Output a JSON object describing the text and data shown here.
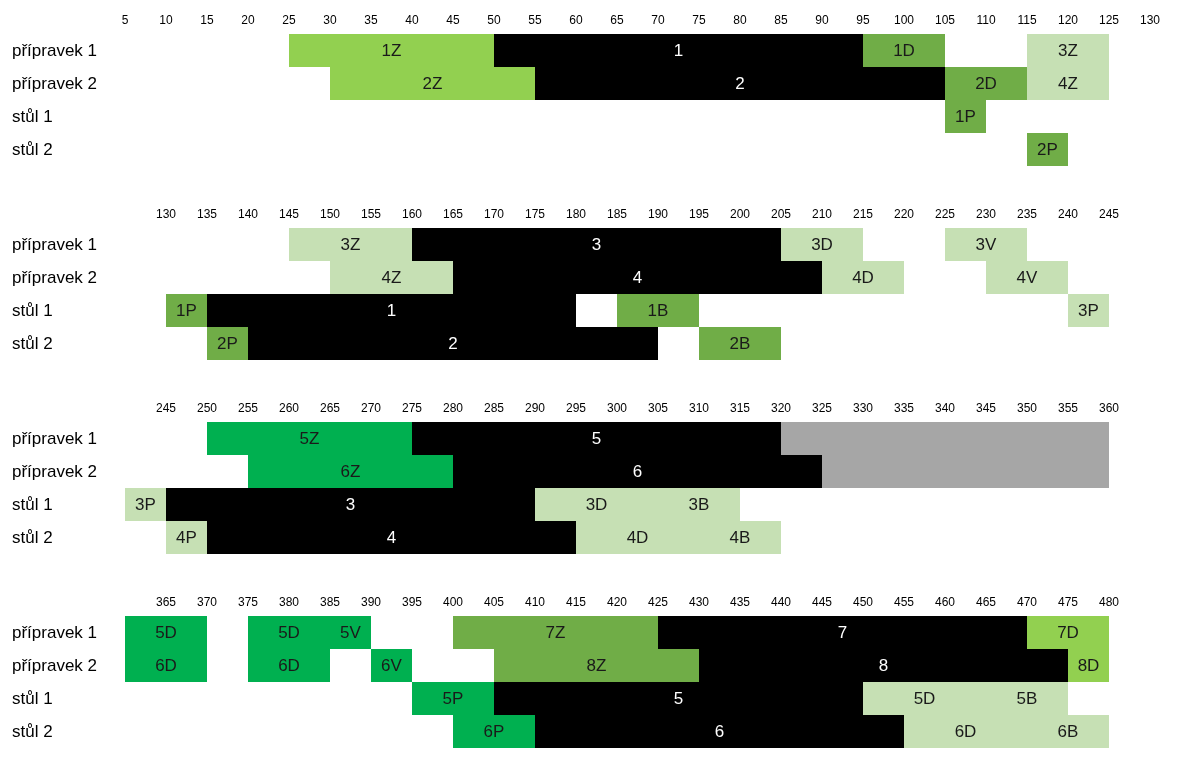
{
  "chart_data": [
    {
      "type": "bar",
      "orientation": "horizontal",
      "categories": [
        "přípravek 1",
        "přípravek 2",
        "stůl 1",
        "stůl 2"
      ],
      "xlim": [
        5,
        130
      ],
      "xticks": [
        5,
        10,
        15,
        20,
        25,
        30,
        35,
        40,
        45,
        50,
        55,
        60,
        65,
        70,
        75,
        80,
        85,
        90,
        95,
        100,
        105,
        110,
        115,
        120,
        125,
        130
      ],
      "series": [
        {
          "color": "#92d050",
          "base": [
            25,
            30,
            null,
            null
          ],
          "values": [
            25,
            25,
            null,
            null
          ]
        },
        {
          "color": "#000000",
          "base": [
            50,
            55,
            null,
            null
          ],
          "values": [
            45,
            50,
            null,
            null
          ]
        },
        {
          "color": "#70ad47",
          "base": [
            95,
            105,
            105,
            115
          ],
          "values": [
            10,
            10,
            5,
            5
          ]
        },
        {
          "color": "#c6e0b4",
          "base": [
            115,
            115,
            null,
            null
          ],
          "values": [
            10,
            10,
            null,
            null
          ]
        }
      ],
      "annotations": [
        {
          "text": "1Z",
          "x": 37.5,
          "y": "přípravek 1"
        },
        {
          "text": "2Z",
          "x": 42.5,
          "y": "přípravek 2"
        },
        {
          "text": "1",
          "x": 72.5,
          "y": "přípravek 1"
        },
        {
          "text": "2",
          "x": 80,
          "y": "přípravek 2"
        },
        {
          "text": "1D",
          "x": 100,
          "y": "přípravek 1"
        },
        {
          "text": "2D",
          "x": 110,
          "y": "přípravek 2"
        },
        {
          "text": "1P",
          "x": 107.5,
          "y": "stůl 1"
        },
        {
          "text": "2P",
          "x": 117.5,
          "y": "stůl 2"
        },
        {
          "text": "3Z",
          "x": 120,
          "y": "přípravek 1"
        },
        {
          "text": "4Z",
          "x": 120,
          "y": "přípravek 2"
        }
      ]
    },
    {
      "type": "bar",
      "orientation": "horizontal",
      "categories": [
        "přípravek 1",
        "přípravek 2",
        "stůl 1",
        "stůl 2"
      ],
      "xlim": [
        130,
        245
      ],
      "xticks": [
        130,
        135,
        140,
        145,
        150,
        155,
        160,
        165,
        170,
        175,
        180,
        185,
        190,
        195,
        200,
        205,
        210,
        215,
        220,
        225,
        230,
        235,
        240,
        245
      ],
      "series": [
        {
          "color": "#c6e0b4",
          "base": [
            145,
            150,
            null,
            null
          ],
          "values": [
            15,
            15,
            null,
            null
          ]
        },
        {
          "color": "#000000",
          "base": [
            160,
            165,
            135,
            140
          ],
          "values": [
            45,
            45,
            45,
            50
          ]
        },
        {
          "color": "#c6e0b4",
          "base": [
            205,
            210,
            null,
            null
          ],
          "values": [
            10,
            10,
            null,
            null
          ]
        },
        {
          "color": "#c6e0b4",
          "base": [
            225,
            230,
            240,
            null
          ],
          "values": [
            10,
            10,
            5,
            null
          ]
        },
        {
          "color": "#70ad47",
          "base": [
            null,
            null,
            130,
            135
          ],
          "values": [
            null,
            null,
            5,
            5
          ]
        },
        {
          "color": "#70ad47",
          "base": [
            null,
            null,
            185,
            195
          ],
          "values": [
            null,
            null,
            10,
            10
          ]
        }
      ],
      "annotations": [
        {
          "text": "3Z",
          "x": 152.5,
          "y": "přípravek 1"
        },
        {
          "text": "4Z",
          "x": 157.5,
          "y": "přípravek 2"
        },
        {
          "text": "3",
          "x": 182.5,
          "y": "přípravek 1"
        },
        {
          "text": "4",
          "x": 187.5,
          "y": "přípravek 2"
        },
        {
          "text": "1",
          "x": 157.5,
          "y": "stůl 1"
        },
        {
          "text": "2",
          "x": 165,
          "y": "stůl 2"
        },
        {
          "text": "3D",
          "x": 210,
          "y": "přípravek 1"
        },
        {
          "text": "4D",
          "x": 215,
          "y": "přípravek 2"
        },
        {
          "text": "3V",
          "x": 230,
          "y": "přípravek 1"
        },
        {
          "text": "4V",
          "x": 235,
          "y": "přípravek 2"
        },
        {
          "text": "3P",
          "x": 242.5,
          "y": "stůl 1"
        },
        {
          "text": "1P",
          "x": 132.5,
          "y": "stůl 1"
        },
        {
          "text": "2P",
          "x": 137.5,
          "y": "stůl 2"
        },
        {
          "text": "1B",
          "x": 190,
          "y": "stůl 1"
        },
        {
          "text": "2B",
          "x": 200,
          "y": "stůl 2"
        }
      ]
    },
    {
      "type": "bar",
      "orientation": "horizontal",
      "categories": [
        "přípravek 1",
        "přípravek 2",
        "stůl 1",
        "stůl 2"
      ],
      "xlim": [
        240,
        360
      ],
      "xticks": [
        245,
        250,
        255,
        260,
        265,
        270,
        275,
        280,
        285,
        290,
        295,
        300,
        305,
        310,
        315,
        320,
        325,
        330,
        335,
        340,
        345,
        350,
        355,
        360
      ],
      "series": [
        {
          "color": "#00b050",
          "base": [
            250,
            255,
            null,
            null
          ],
          "values": [
            25,
            25,
            null,
            null
          ]
        },
        {
          "color": "#000000",
          "base": [
            275,
            280,
            245,
            250
          ],
          "values": [
            45,
            45,
            45,
            45
          ]
        },
        {
          "color": "#a6a6a6",
          "base": [
            320,
            325,
            null,
            null
          ],
          "values": [
            40,
            35,
            null,
            null
          ]
        },
        {
          "color": "#c6e0b4",
          "base": [
            null,
            null,
            240,
            245
          ],
          "values": [
            null,
            null,
            5,
            5
          ]
        },
        {
          "color": "#c6e0b4",
          "base": [
            null,
            null,
            290,
            295
          ],
          "values": [
            null,
            null,
            15,
            15
          ]
        },
        {
          "color": "#c6e0b4",
          "base": [
            null,
            null,
            305,
            310
          ],
          "values": [
            null,
            null,
            10,
            10
          ]
        }
      ],
      "annotations": [
        {
          "text": "5Z",
          "x": 262.5,
          "y": "přípravek 1"
        },
        {
          "text": "6Z",
          "x": 267.5,
          "y": "přípravek 2"
        },
        {
          "text": "5",
          "x": 297.5,
          "y": "přípravek 1"
        },
        {
          "text": "6",
          "x": 302.5,
          "y": "přípravek 2"
        },
        {
          "text": "3",
          "x": 267.5,
          "y": "stůl 1"
        },
        {
          "text": "4",
          "x": 272.5,
          "y": "stůl 2"
        },
        {
          "text": "3P",
          "x": 242.5,
          "y": "stůl 1"
        },
        {
          "text": "4P",
          "x": 247.5,
          "y": "stůl 2"
        },
        {
          "text": "3D",
          "x": 297.5,
          "y": "stůl 1"
        },
        {
          "text": "4D",
          "x": 302.5,
          "y": "stůl 2"
        },
        {
          "text": "3B",
          "x": 310,
          "y": "stůl 1"
        },
        {
          "text": "4B",
          "x": 315,
          "y": "stůl 2"
        }
      ]
    },
    {
      "type": "bar",
      "orientation": "horizontal",
      "categories": [
        "přípravek 1",
        "přípravek 2",
        "stůl 1",
        "stůl 2"
      ],
      "xlim": [
        360,
        480
      ],
      "xticks": [
        365,
        370,
        375,
        380,
        385,
        390,
        395,
        400,
        405,
        410,
        415,
        420,
        425,
        430,
        435,
        440,
        445,
        450,
        455,
        460,
        465,
        470,
        475,
        480
      ],
      "series": [
        {
          "color": "#00b050",
          "base": [
            360,
            360,
            395,
            400
          ],
          "values": [
            10,
            10,
            10,
            10
          ]
        },
        {
          "color": "#00b050",
          "base": [
            375,
            375,
            null,
            null
          ],
          "values": [
            10,
            10,
            null,
            null
          ]
        },
        {
          "color": "#00b050",
          "base": [
            385,
            390,
            null,
            null
          ],
          "values": [
            5,
            5,
            null,
            null
          ]
        },
        {
          "color": "#70ad47",
          "base": [
            400,
            405,
            null,
            null
          ],
          "values": [
            25,
            25,
            null,
            null
          ]
        },
        {
          "color": "#000000",
          "base": [
            425,
            430,
            405,
            410
          ],
          "values": [
            45,
            45,
            45,
            45
          ]
        },
        {
          "color": "#92d050",
          "base": [
            470,
            475,
            null,
            null
          ],
          "values": [
            10,
            5,
            null,
            null
          ]
        },
        {
          "color": "#c6e0b4",
          "base": [
            null,
            null,
            450,
            455
          ],
          "values": [
            null,
            null,
            15,
            15
          ]
        },
        {
          "color": "#c6e0b4",
          "base": [
            null,
            null,
            465,
            470
          ],
          "values": [
            null,
            null,
            10,
            10
          ]
        }
      ],
      "annotations": [
        {
          "text": "5D",
          "x": 365,
          "y": "přípravek 1"
        },
        {
          "text": "6D",
          "x": 365,
          "y": "přípravek 2"
        },
        {
          "text": "5P",
          "x": 400,
          "y": "stůl 1"
        },
        {
          "text": "6P",
          "x": 405,
          "y": "stůl 2"
        },
        {
          "text": "5D",
          "x": 380,
          "y": "přípravek 1"
        },
        {
          "text": "6D",
          "x": 380,
          "y": "přípravek 2"
        },
        {
          "text": "5V",
          "x": 387.5,
          "y": "přípravek 1"
        },
        {
          "text": "6V",
          "x": 392.5,
          "y": "přípravek 2"
        },
        {
          "text": "7Z",
          "x": 412.5,
          "y": "přípravek 1"
        },
        {
          "text": "8Z",
          "x": 417.5,
          "y": "přípravek 2"
        },
        {
          "text": "7",
          "x": 447.5,
          "y": "přípravek 1"
        },
        {
          "text": "8",
          "x": 452.5,
          "y": "přípravek 2"
        },
        {
          "text": "5",
          "x": 427.5,
          "y": "stůl 1"
        },
        {
          "text": "6",
          "x": 432.5,
          "y": "stůl 2"
        },
        {
          "text": "7D",
          "x": 475,
          "y": "přípravek 1"
        },
        {
          "text": "8D",
          "x": 477.5,
          "y": "přípravek 2"
        },
        {
          "text": "5D",
          "x": 457.5,
          "y": "stůl 1"
        },
        {
          "text": "6D",
          "x": 462.5,
          "y": "stůl 2"
        },
        {
          "text": "5B",
          "x": 470,
          "y": "stůl 1"
        },
        {
          "text": "6B",
          "x": 475,
          "y": "stůl 2"
        }
      ]
    }
  ]
}
